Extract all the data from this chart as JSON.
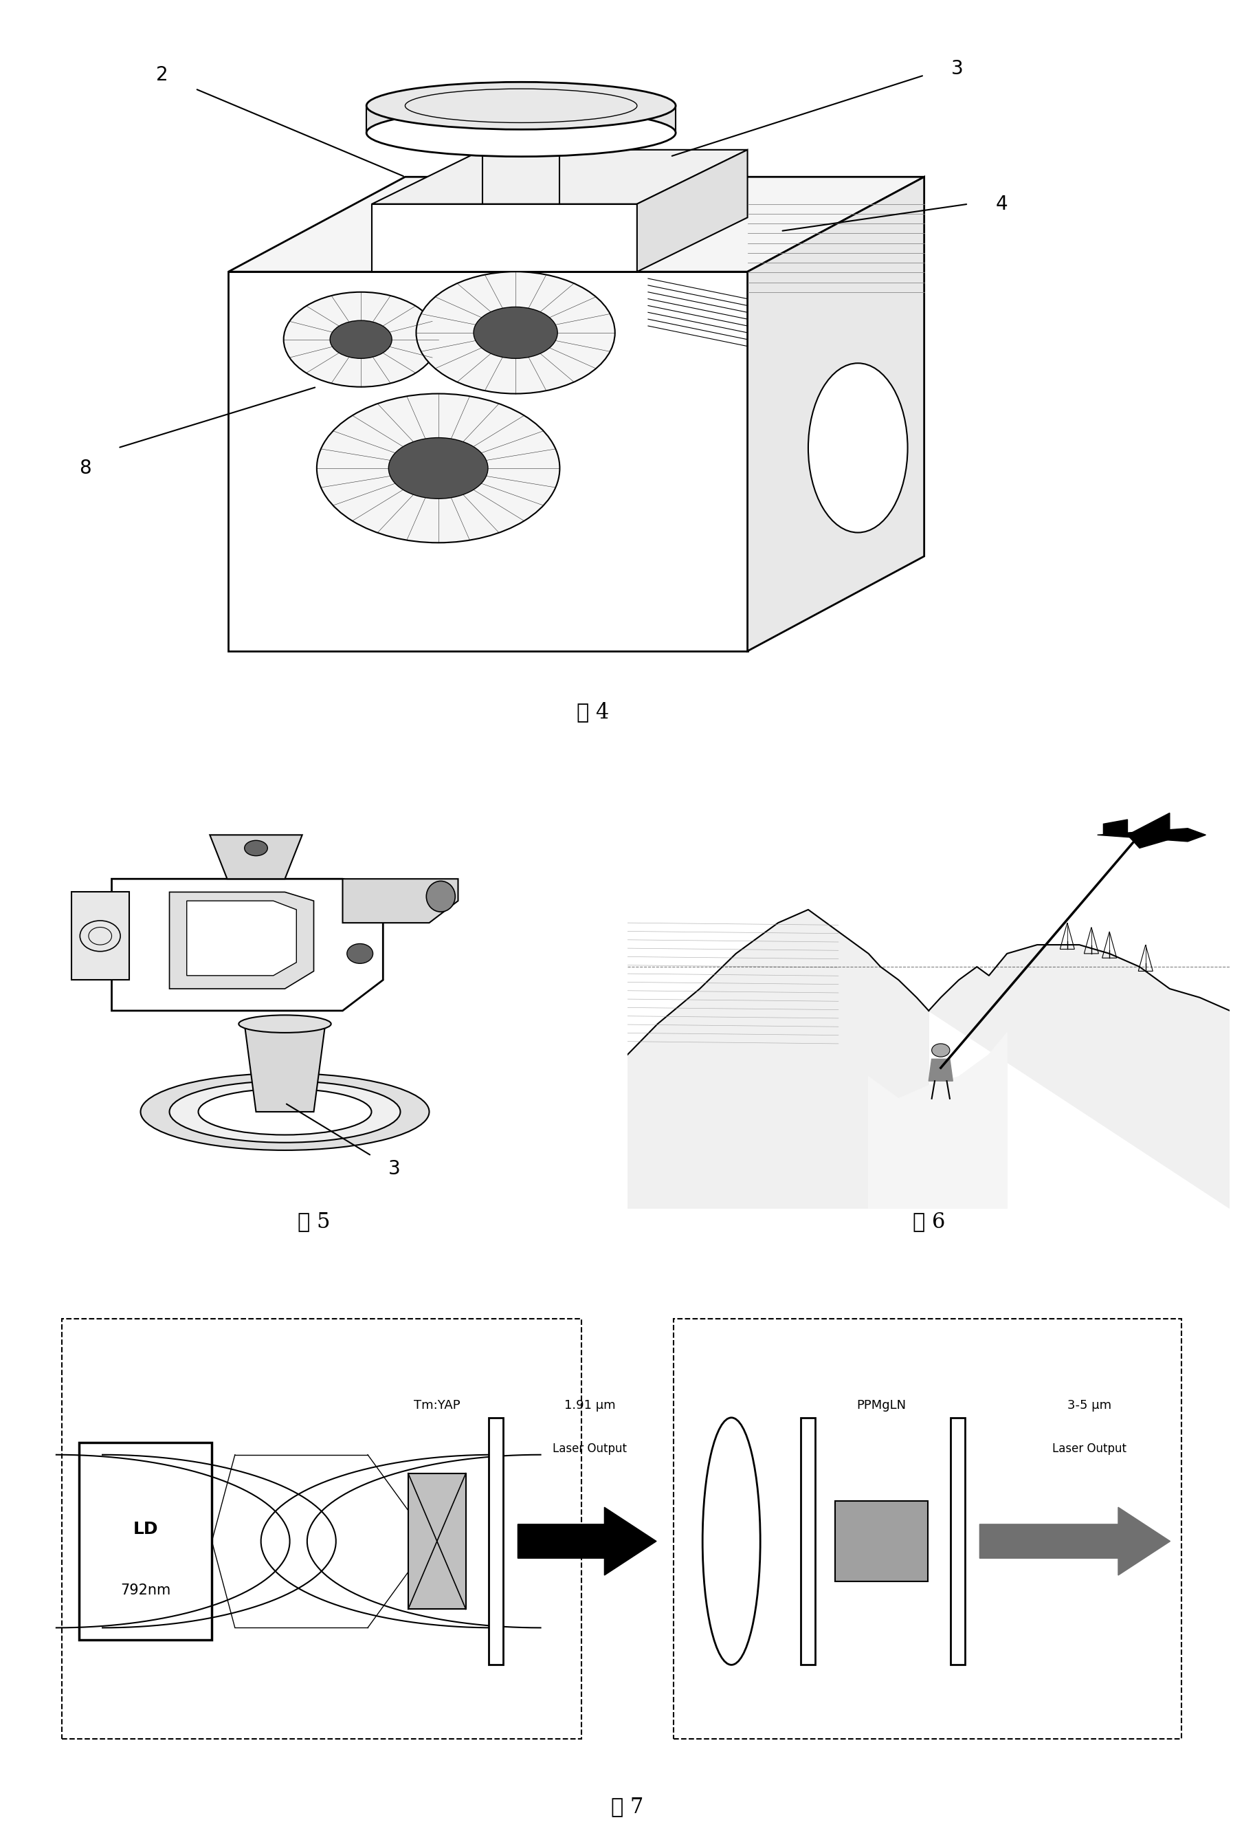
{
  "fig_width": 18.26,
  "fig_height": 26.63,
  "background_color": "#ffffff",
  "fig4_caption": "图 4",
  "fig5_caption": "图 5",
  "fig6_caption": "图 6",
  "fig7_caption": "图 7",
  "fig7_label1": "1.91 μm",
  "fig7_label2": "Laser Output",
  "fig7_label3": "PPMgLN",
  "fig7_label4": "3-5 μm",
  "fig7_label5": "Laser Output",
  "fig7_label6": "Tm:YAP",
  "fig7_ld_line1": "LD",
  "fig7_ld_line2": "792nm",
  "label2": "2",
  "label3": "3",
  "label4": "4",
  "label8": "8",
  "label3b": "3"
}
